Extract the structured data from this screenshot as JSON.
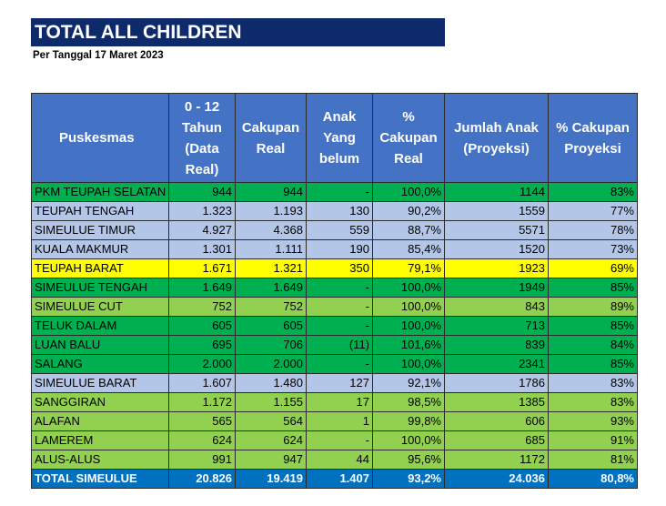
{
  "title": "TOTAL ALL CHILDREN",
  "subtitle": "Per Tanggal 17 Maret 2023",
  "headers": {
    "puskesmas": "Puskesmas",
    "data_real": "0 - 12 Tahun (Data Real)",
    "cakupan_real": "Cakupan Real",
    "anak_belum": "Anak Yang belum",
    "pct_real": "% Cakupan Real",
    "jumlah_proyeksi": "Jumlah Anak (Proyeksi)",
    "pct_proyeksi": "% Cakupan Proyeksi"
  },
  "colors": {
    "title_bg": "#0f2a6a",
    "header_bg": "#4472c4",
    "green_dark": "#00b050",
    "green_light": "#92d050",
    "blue": "#b4c6e7",
    "yellow": "#ffff00",
    "total_bg": "#0070c0"
  },
  "rows": [
    {
      "name": "PKM TEUPAH SELATAN",
      "data_real": "944",
      "cakupan_real": "944",
      "anak_belum": "-",
      "pct_real": "100,0%",
      "jumlah_proyeksi": "1144",
      "pct_proyeksi": "83%",
      "color": "green_dark"
    },
    {
      "name": "TEUPAH TENGAH",
      "data_real": "1.323",
      "cakupan_real": "1.193",
      "anak_belum": "130",
      "pct_real": "90,2%",
      "jumlah_proyeksi": "1559",
      "pct_proyeksi": "77%",
      "color": "blue"
    },
    {
      "name": "SIMEULUE TIMUR",
      "data_real": "4.927",
      "cakupan_real": "4.368",
      "anak_belum": "559",
      "pct_real": "88,7%",
      "jumlah_proyeksi": "5571",
      "pct_proyeksi": "78%",
      "color": "blue"
    },
    {
      "name": "KUALA MAKMUR",
      "data_real": "1.301",
      "cakupan_real": "1.111",
      "anak_belum": "190",
      "pct_real": "85,4%",
      "jumlah_proyeksi": "1520",
      "pct_proyeksi": "73%",
      "color": "blue"
    },
    {
      "name": "TEUPAH BARAT",
      "data_real": "1.671",
      "cakupan_real": "1.321",
      "anak_belum": "350",
      "pct_real": "79,1%",
      "jumlah_proyeksi": "1923",
      "pct_proyeksi": "69%",
      "color": "yellow"
    },
    {
      "name": "SIMEULUE TENGAH",
      "data_real": "1.649",
      "cakupan_real": "1.649",
      "anak_belum": "-",
      "pct_real": "100,0%",
      "jumlah_proyeksi": "1949",
      "pct_proyeksi": "85%",
      "color": "green_dark"
    },
    {
      "name": "SIMEULUE CUT",
      "data_real": "752",
      "cakupan_real": "752",
      "anak_belum": "-",
      "pct_real": "100,0%",
      "jumlah_proyeksi": "843",
      "pct_proyeksi": "89%",
      "color": "green_light"
    },
    {
      "name": "TELUK DALAM",
      "data_real": "605",
      "cakupan_real": "605",
      "anak_belum": "-",
      "pct_real": "100,0%",
      "jumlah_proyeksi": "713",
      "pct_proyeksi": "85%",
      "color": "green_dark"
    },
    {
      "name": "LUAN BALU",
      "data_real": "695",
      "cakupan_real": "706",
      "anak_belum": "(11)",
      "pct_real": "101,6%",
      "jumlah_proyeksi": "839",
      "pct_proyeksi": "84%",
      "color": "green_dark"
    },
    {
      "name": "SALANG",
      "data_real": "2.000",
      "cakupan_real": "2.000",
      "anak_belum": "-",
      "pct_real": "100,0%",
      "jumlah_proyeksi": "2341",
      "pct_proyeksi": "85%",
      "color": "green_dark"
    },
    {
      "name": "SIMEULUE BARAT",
      "data_real": "1.607",
      "cakupan_real": "1.480",
      "anak_belum": "127",
      "pct_real": "92,1%",
      "jumlah_proyeksi": "1786",
      "pct_proyeksi": "83%",
      "color": "blue"
    },
    {
      "name": "SANGGIRAN",
      "data_real": "1.172",
      "cakupan_real": "1.155",
      "anak_belum": "17",
      "pct_real": "98,5%",
      "jumlah_proyeksi": "1385",
      "pct_proyeksi": "83%",
      "color": "green_light"
    },
    {
      "name": "ALAFAN",
      "data_real": "565",
      "cakupan_real": "564",
      "anak_belum": "1",
      "pct_real": "99,8%",
      "jumlah_proyeksi": "606",
      "pct_proyeksi": "93%",
      "color": "green_light"
    },
    {
      "name": "LAMEREM",
      "data_real": "624",
      "cakupan_real": "624",
      "anak_belum": "-",
      "pct_real": "100,0%",
      "jumlah_proyeksi": "685",
      "pct_proyeksi": "91%",
      "color": "green_light"
    },
    {
      "name": "ALUS-ALUS",
      "data_real": "991",
      "cakupan_real": "947",
      "anak_belum": "44",
      "pct_real": "95,6%",
      "jumlah_proyeksi": "1172",
      "pct_proyeksi": "81%",
      "color": "green_light"
    }
  ],
  "total": {
    "name": "TOTAL SIMEULUE",
    "data_real": "20.826",
    "cakupan_real": "19.419",
    "anak_belum": "1.407",
    "pct_real": "93,2%",
    "jumlah_proyeksi": "24.036",
    "pct_proyeksi": "80,8%"
  }
}
